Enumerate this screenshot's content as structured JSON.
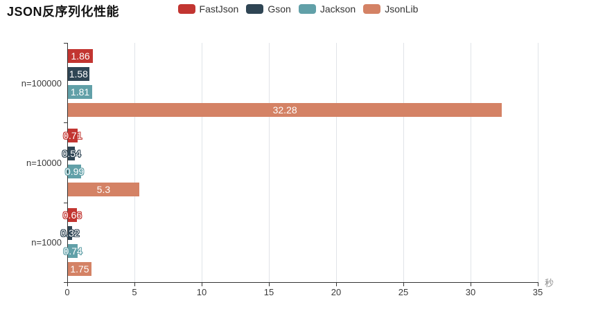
{
  "title": "JSON反序列化性能",
  "legend": {
    "items": [
      {
        "label": "FastJson",
        "color": "#c23531"
      },
      {
        "label": "Gson",
        "color": "#2f4554"
      },
      {
        "label": "Jackson",
        "color": "#61a0a8"
      },
      {
        "label": "JsonLib",
        "color": "#d48265"
      }
    ]
  },
  "chart_data": {
    "type": "bar",
    "orientation": "horizontal",
    "title": "JSON反序列化性能",
    "categories": [
      "n=100000",
      "n=10000",
      "n=1000"
    ],
    "series": [
      {
        "name": "FastJson",
        "color": "#c23531",
        "values": [
          1.86,
          0.71,
          0.66
        ]
      },
      {
        "name": "Gson",
        "color": "#2f4554",
        "values": [
          1.58,
          0.54,
          0.32
        ]
      },
      {
        "name": "Jackson",
        "color": "#61a0a8",
        "values": [
          1.81,
          0.99,
          0.74
        ]
      },
      {
        "name": "JsonLib",
        "color": "#d48265",
        "values": [
          32.28,
          5.3,
          1.75
        ]
      }
    ],
    "value_labels": [
      "1.86",
      "1.58",
      "1.81",
      "32.28",
      "0.71",
      "0.54",
      "0.99",
      "5.3",
      "0.66",
      "0.32",
      "0.74",
      "1.75"
    ],
    "xlabel": "秒",
    "x_ticks": [
      0,
      5,
      10,
      15,
      20,
      25,
      30,
      35
    ],
    "xlim": [
      0,
      35
    ],
    "grid": true,
    "legend_position": "top",
    "value_label_style": "inside white with series-color outline"
  },
  "colors": {
    "axis": "#333333",
    "gridline": "#e0e3e8",
    "tick_text": "#3a3a3a",
    "unit_text": "#8c8c8c"
  }
}
